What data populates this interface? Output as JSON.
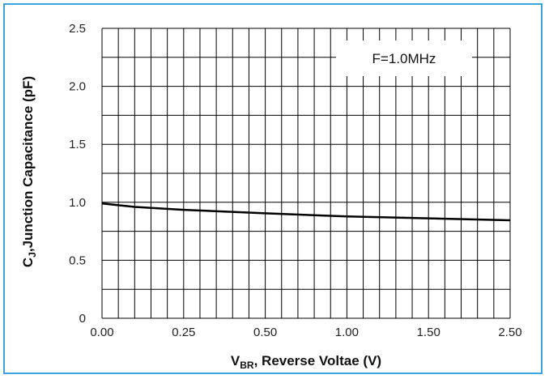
{
  "chart_data": {
    "type": "line",
    "xlabel": {
      "main": "V",
      "sub": "BR",
      "rest": ", Reverse Voltae (V)"
    },
    "ylabel": {
      "main": "C",
      "sub": "J",
      "rest": ",Junction Capacitance (pF)"
    },
    "annotation": "F=1.0MHz",
    "x_tick_labels": [
      "0.00",
      "0.25",
      "0.50",
      "1.00",
      "1.50",
      "2.50"
    ],
    "y_tick_labels": [
      "0",
      "0.5",
      "1.0",
      "1.5",
      "2.0",
      "2.5"
    ],
    "ylim": [
      0,
      2.5
    ],
    "grid": true,
    "series": [
      {
        "x": [
          "0.00",
          "0.05",
          "0.10",
          "0.25",
          "0.50",
          "1.00",
          "1.50",
          "2.50"
        ],
        "values": [
          0.99,
          0.975,
          0.96,
          0.935,
          0.905,
          0.878,
          0.862,
          0.845
        ]
      }
    ],
    "colors": {
      "line": "#000000",
      "grid": "#000000",
      "frame": "#3aa3e0"
    }
  }
}
